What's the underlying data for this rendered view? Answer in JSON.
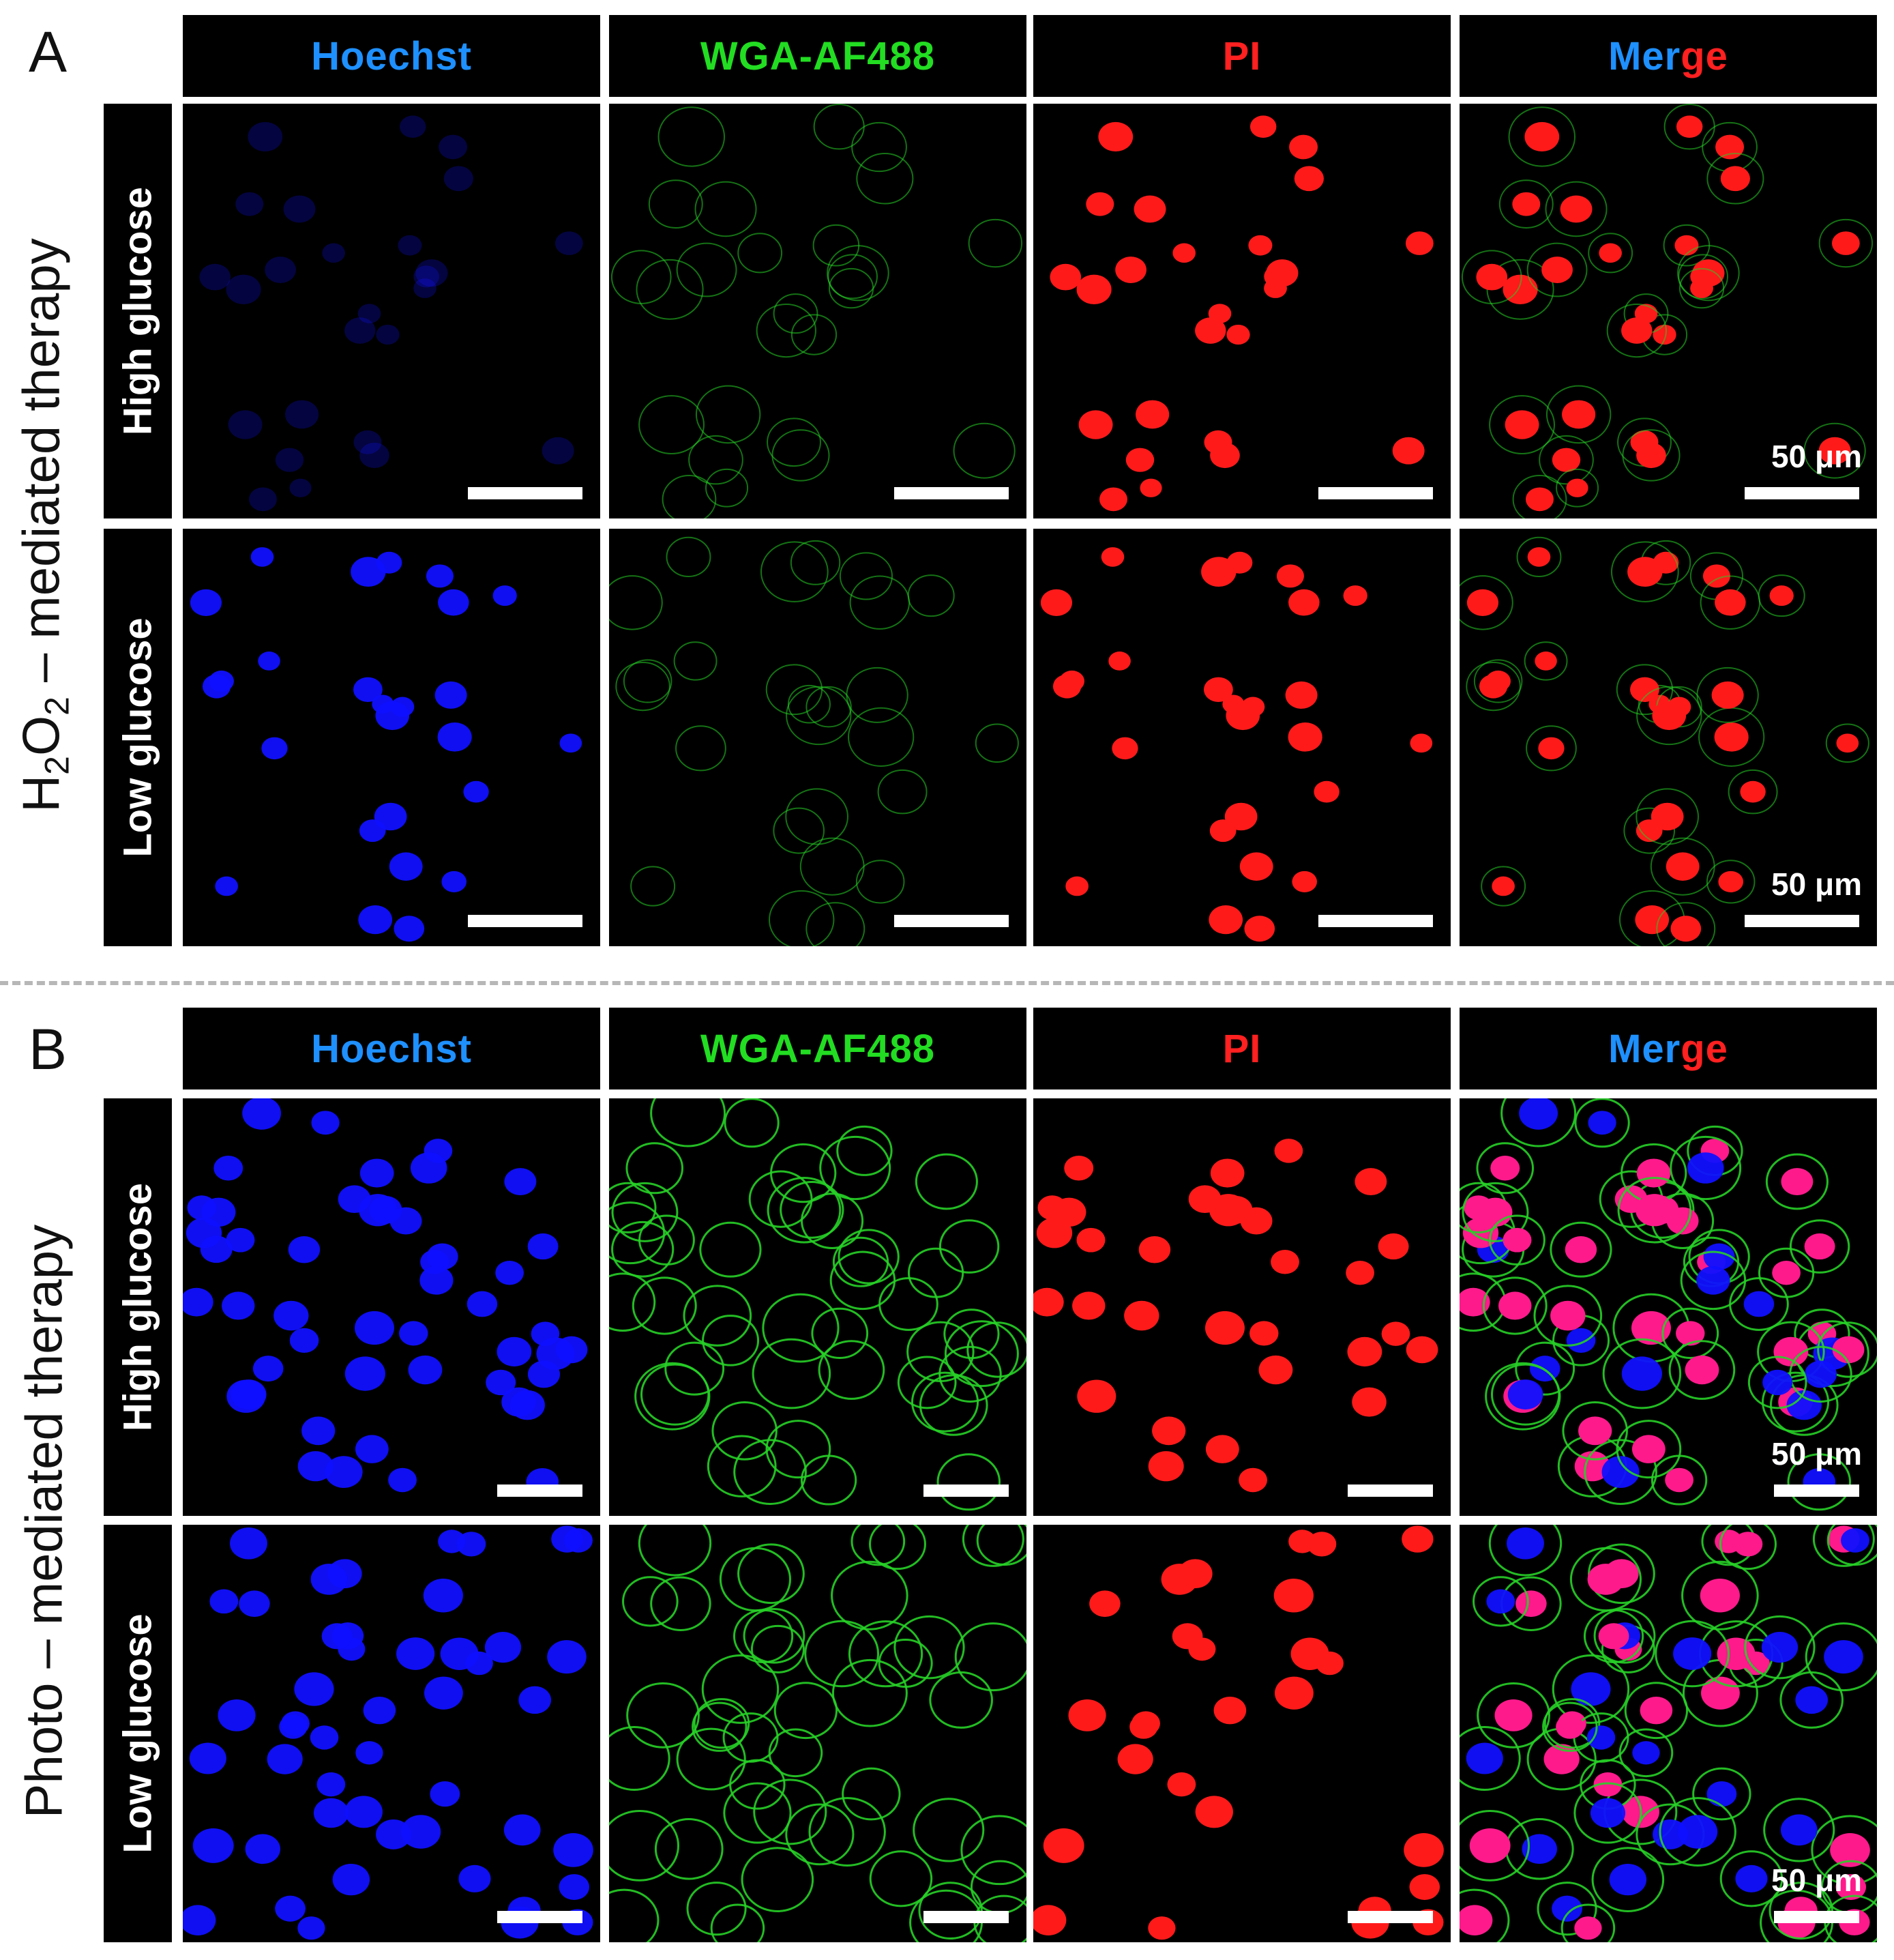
{
  "panels": [
    {
      "letter": "A",
      "side_label_parts": [
        "H",
        "2",
        "O",
        "2",
        " – mediated therapy"
      ],
      "rows": [
        "High glucose",
        "Low glucose"
      ],
      "scale_text": "50 μm"
    },
    {
      "letter": "B",
      "side_label": "Photo – mediated therapy",
      "rows": [
        "High glucose",
        "Low glucose"
      ],
      "scale_text": "50 μm"
    }
  ],
  "columns": {
    "hoechst": "Hoechst",
    "wga": "WGA-AF488",
    "pi": "PI",
    "merge_part1": "Mer",
    "merge_part2": "ge"
  },
  "colors": {
    "hoechst": "#1e90ff",
    "wga": "#22dd22",
    "pi": "#ff2020",
    "merge_blue": "#1e90ff",
    "merge_green": "#22dd22",
    "merge_red": "#ff2020",
    "nucleus_blue": "#1010ff",
    "nucleus_red": "#ff1a1a",
    "membrane_green": "#27d027",
    "magenta": "#ff1a8c"
  },
  "icons": [
    "microscopy-image-tiles"
  ]
}
